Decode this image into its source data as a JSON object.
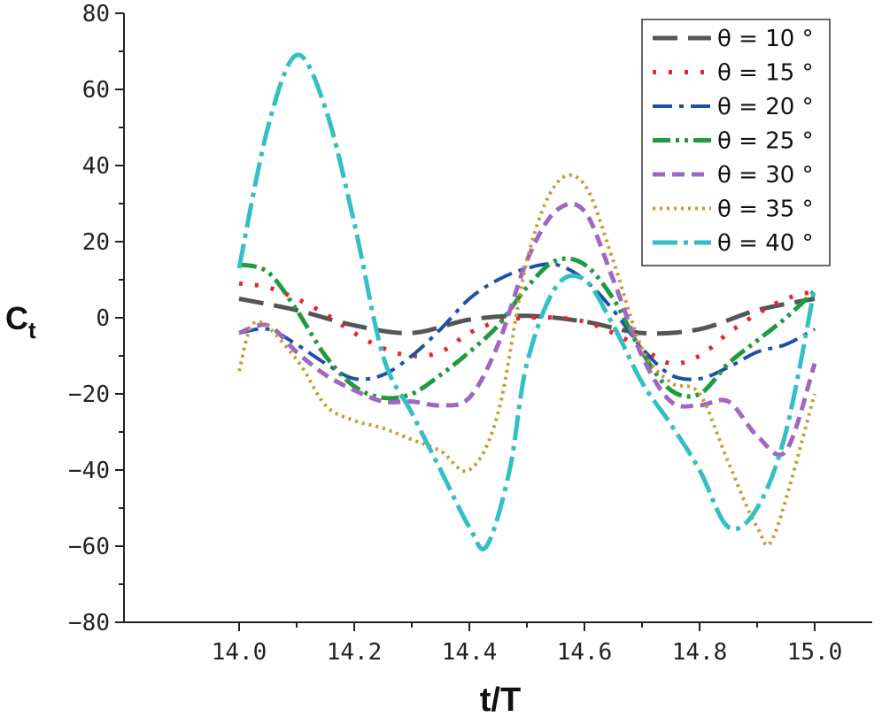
{
  "chart_data": {
    "type": "line",
    "xlabel": "t/T",
    "ylabel": "C",
    "ylabel_sub": "t",
    "xlim": [
      13.8,
      15.1
    ],
    "ylim": [
      -80,
      80
    ],
    "xticks": [
      "14.0",
      "14.2",
      "14.4",
      "14.6",
      "14.8",
      "15.0"
    ],
    "yticks": [
      "80",
      "60",
      "40",
      "20",
      "0",
      "−20",
      "−40",
      "−60",
      "−80"
    ],
    "legend_position": "top-right",
    "series": [
      {
        "name": "θ = 10 °",
        "color": "#555555",
        "dash": "28 12",
        "width": 5,
        "x": [
          14.0,
          14.1,
          14.2,
          14.3,
          14.4,
          14.5,
          14.6,
          14.7,
          14.8,
          14.9,
          15.0
        ],
        "y": [
          5,
          2,
          -2,
          -4,
          -0.5,
          0.5,
          -1,
          -4,
          -3,
          2,
          5
        ]
      },
      {
        "name": "θ = 15 °",
        "color": "#e8262a",
        "dash": "4 14",
        "width": 5,
        "x": [
          14.0,
          14.05,
          14.1,
          14.15,
          14.2,
          14.25,
          14.3,
          14.35,
          14.4,
          14.45,
          14.5,
          14.55,
          14.6,
          14.65,
          14.7,
          14.75,
          14.8,
          14.85,
          14.9,
          14.95,
          15.0
        ],
        "y": [
          9,
          8,
          5,
          1,
          -4,
          -8,
          -10,
          -9,
          -4,
          -1,
          0,
          0,
          -1,
          -4,
          -8,
          -12,
          -10,
          -4,
          1,
          5,
          7
        ]
      },
      {
        "name": "θ = 20 °",
        "color": "#1f4fa8",
        "dash": "22 8 5 8",
        "width": 4,
        "x": [
          14.0,
          14.05,
          14.1,
          14.15,
          14.2,
          14.25,
          14.3,
          14.35,
          14.4,
          14.45,
          14.5,
          14.55,
          14.6,
          14.65,
          14.7,
          14.75,
          14.8,
          14.85,
          14.9,
          14.95,
          15.0
        ],
        "y": [
          -4,
          -3,
          -7,
          -12,
          -16,
          -15,
          -10,
          -3,
          5,
          10,
          13,
          14,
          10,
          2,
          -8,
          -15,
          -16,
          -13,
          -9,
          -7,
          -3
        ]
      },
      {
        "name": "θ = 25 °",
        "color": "#1f9a3c",
        "dash": "20 6 4 6 4 6",
        "width": 5,
        "x": [
          14.0,
          14.05,
          14.1,
          14.15,
          14.2,
          14.25,
          14.3,
          14.35,
          14.4,
          14.45,
          14.5,
          14.55,
          14.6,
          14.65,
          14.7,
          14.75,
          14.8,
          14.85,
          14.9,
          14.95,
          15.0
        ],
        "y": [
          14,
          12,
          2,
          -10,
          -18,
          -21,
          -20,
          -15,
          -9,
          -2,
          8,
          15,
          14,
          5,
          -9,
          -19,
          -20,
          -12,
          -6,
          0,
          7
        ]
      },
      {
        "name": "θ = 30 °",
        "color": "#a067c2",
        "dash": "14 8",
        "width": 5,
        "x": [
          14.0,
          14.05,
          14.1,
          14.15,
          14.2,
          14.25,
          14.3,
          14.35,
          14.4,
          14.45,
          14.5,
          14.55,
          14.6,
          14.65,
          14.7,
          14.75,
          14.8,
          14.85,
          14.9,
          14.95,
          15.0
        ],
        "y": [
          -4,
          -2,
          -9,
          -15,
          -19,
          -22,
          -22,
          -23,
          -21,
          -7,
          15,
          28,
          28,
          10,
          -10,
          -22,
          -23,
          -22,
          -31,
          -35,
          -12
        ]
      },
      {
        "name": "θ = 35 °",
        "color": "#c99a2e",
        "dash": "3 5",
        "width": 4,
        "x": [
          14.0,
          14.03,
          14.1,
          14.15,
          14.2,
          14.25,
          14.3,
          14.35,
          14.4,
          14.45,
          14.5,
          14.55,
          14.6,
          14.65,
          14.7,
          14.75,
          14.8,
          14.85,
          14.9,
          14.93,
          15.0
        ],
        "y": [
          -14,
          -1,
          -11,
          -23,
          -27,
          -29,
          -32,
          -35,
          -40,
          -25,
          15,
          35,
          35,
          15,
          -8,
          -17,
          -20,
          -38,
          -55,
          -57,
          -20
        ]
      },
      {
        "name": "θ = 40 °",
        "color": "#33bfc4",
        "dash": "28 7 5 7",
        "width": 5,
        "x": [
          14.0,
          14.05,
          14.1,
          14.15,
          14.2,
          14.25,
          14.3,
          14.35,
          14.4,
          14.43,
          14.47,
          14.5,
          14.55,
          14.6,
          14.65,
          14.7,
          14.75,
          14.8,
          14.85,
          14.9,
          14.95,
          15.0
        ],
        "y": [
          13,
          50,
          69,
          55,
          25,
          -10,
          -25,
          -40,
          -55,
          -60,
          -40,
          -12,
          8,
          10,
          -2,
          -17,
          -28,
          -40,
          -55,
          -50,
          -30,
          8
        ]
      }
    ]
  }
}
